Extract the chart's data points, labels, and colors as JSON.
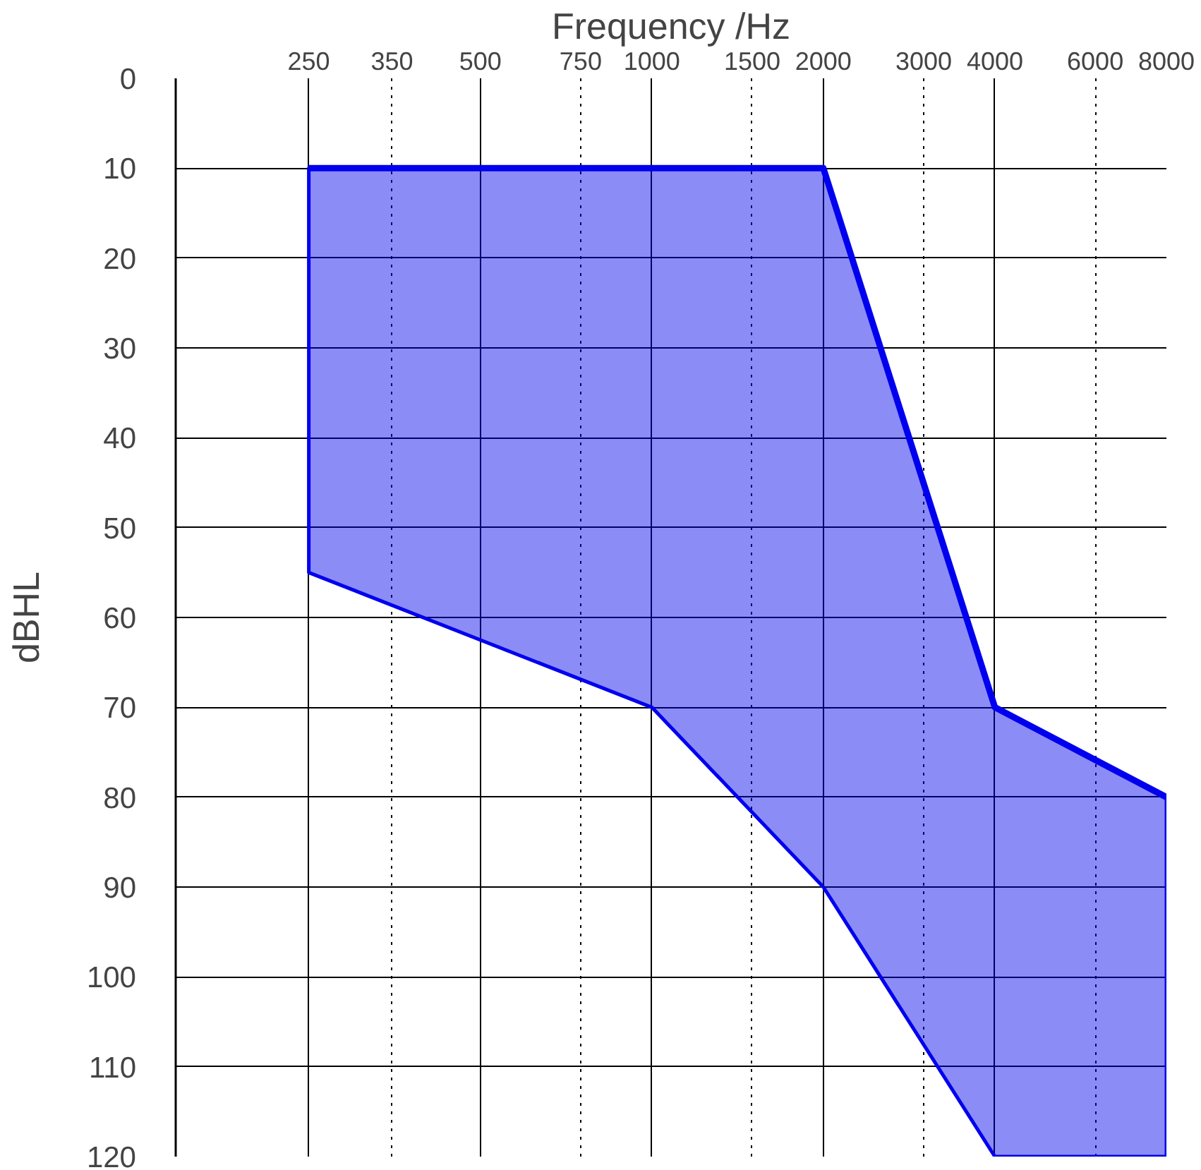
{
  "chart_data": {
    "type": "line",
    "xlabel": "Frequency /Hz",
    "ylabel": "dBHL",
    "log": "x",
    "xlim": [
      146,
      8000
    ],
    "ylim": [
      120,
      0
    ],
    "xticks": [
      250,
      350,
      500,
      750,
      1000,
      1500,
      2000,
      3000,
      4000,
      6000,
      8000
    ],
    "yticks": [
      0,
      10,
      20,
      30,
      40,
      50,
      60,
      70,
      80,
      90,
      100,
      110,
      120
    ],
    "grid": true,
    "series": [
      {
        "color": "#0000ee",
        "x": [
          250,
          1000,
          2000,
          4000,
          8000
        ],
        "values": [
          10,
          10,
          10,
          70,
          80
        ],
        "lower": [
          55,
          70,
          90,
          120,
          120
        ],
        "upper": [
          10,
          10,
          10,
          70,
          80
        ]
      }
    ]
  }
}
